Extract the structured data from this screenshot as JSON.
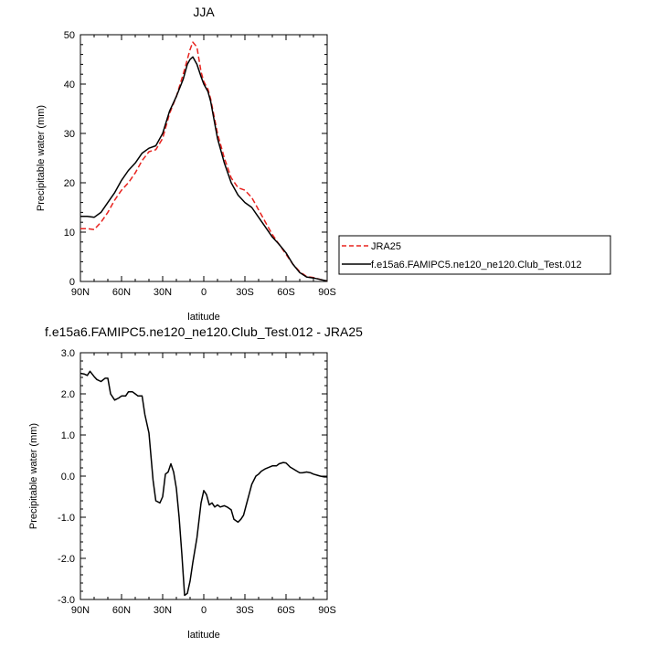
{
  "chart_data": [
    {
      "type": "line",
      "title": "JJA",
      "xlabel": "latitude",
      "ylabel": "Precipitable water (mm)",
      "xlim": [
        90,
        -90
      ],
      "ylim": [
        0,
        50
      ],
      "x_ticks": [
        90,
        60,
        30,
        0,
        -30,
        -60,
        -90
      ],
      "x_tick_labels": [
        "90N",
        "60N",
        "30N",
        "0",
        "30S",
        "60S",
        "90S"
      ],
      "y_ticks": [
        0,
        10,
        20,
        30,
        40,
        50
      ],
      "y_tick_labels": [
        "0",
        "10",
        "20",
        "30",
        "40",
        "50"
      ],
      "legend_position": "right",
      "series": [
        {
          "name": "JRA25",
          "color": "#e8231f",
          "dash": "dashed",
          "x": [
            90,
            85,
            80,
            75,
            70,
            65,
            60,
            55,
            50,
            45,
            40,
            35,
            30,
            25,
            20,
            15,
            12,
            10,
            8,
            5,
            2,
            0,
            -3,
            -5,
            -10,
            -15,
            -20,
            -25,
            -30,
            -35,
            -40,
            -45,
            -50,
            -55,
            -60,
            -65,
            -70,
            -75,
            -80,
            -85,
            -90
          ],
          "values": [
            10.7,
            10.7,
            10.5,
            12.0,
            14.0,
            16.5,
            18.5,
            20.0,
            22.0,
            24.5,
            26.3,
            26.7,
            29.0,
            34.0,
            37.5,
            42.0,
            45.0,
            47.0,
            48.5,
            47.5,
            42.5,
            40.5,
            39.0,
            37.0,
            30.0,
            25.0,
            21.0,
            19.0,
            18.5,
            17.0,
            14.5,
            12.0,
            9.5,
            7.5,
            5.5,
            3.5,
            2.0,
            1.0,
            0.8,
            0.4,
            0.1
          ]
        },
        {
          "name": "f.e15a6.FAMIPC5.ne120_ne120.Club_Test.012",
          "color": "#000000",
          "dash": "solid",
          "x": [
            90,
            85,
            80,
            75,
            70,
            65,
            60,
            55,
            50,
            45,
            40,
            35,
            30,
            25,
            20,
            15,
            12,
            10,
            8,
            5,
            2,
            0,
            -3,
            -5,
            -10,
            -15,
            -20,
            -25,
            -30,
            -35,
            -40,
            -45,
            -50,
            -55,
            -60,
            -65,
            -70,
            -75,
            -80,
            -85,
            -90
          ],
          "values": [
            13.2,
            13.2,
            13.0,
            14.0,
            16.0,
            18.0,
            20.5,
            22.5,
            24.0,
            26.0,
            27.0,
            27.5,
            30.0,
            34.5,
            37.5,
            41.0,
            44.0,
            45.0,
            45.5,
            44.0,
            41.5,
            40.0,
            38.5,
            36.5,
            29.0,
            24.0,
            20.0,
            17.5,
            16.0,
            15.0,
            13.0,
            11.0,
            9.0,
            7.5,
            5.8,
            3.5,
            1.8,
            0.9,
            0.7,
            0.4,
            0.1
          ]
        }
      ]
    },
    {
      "type": "line",
      "title": "f.e15a6.FAMIPC5.ne120_ne120.Club_Test.012 - JRA25",
      "xlabel": "latitude",
      "ylabel": "Precipitable water (mm)",
      "xlim": [
        90,
        -90
      ],
      "ylim": [
        -3.0,
        3.0
      ],
      "x_ticks": [
        90,
        60,
        30,
        0,
        -30,
        -60,
        -90
      ],
      "x_tick_labels": [
        "90N",
        "60N",
        "30N",
        "0",
        "30S",
        "60S",
        "90S"
      ],
      "y_ticks": [
        -3,
        -2,
        -1,
        0,
        1,
        2,
        3
      ],
      "y_tick_labels": [
        "-3.0",
        "-2.0",
        "-1.0",
        "0.0",
        "1.0",
        "2.0",
        "3.0"
      ],
      "series": [
        {
          "color": "#000000",
          "dash": "solid",
          "x": [
            90,
            87,
            85,
            83,
            80,
            78,
            75,
            72,
            70,
            68,
            65,
            62,
            60,
            57,
            55,
            52,
            50,
            48,
            45,
            43,
            40,
            37,
            35,
            32,
            30,
            28,
            26,
            24,
            22,
            20,
            18,
            16,
            14,
            12,
            10,
            8,
            5,
            2,
            0,
            -2,
            -4,
            -6,
            -8,
            -10,
            -12,
            -15,
            -17,
            -20,
            -22,
            -25,
            -27,
            -29,
            -31,
            -33,
            -35,
            -38,
            -40,
            -42,
            -45,
            -48,
            -50,
            -53,
            -55,
            -58,
            -60,
            -63,
            -65,
            -68,
            -70,
            -72,
            -75,
            -78,
            -80,
            -83,
            -85,
            -88,
            -90
          ],
          "values": [
            2.5,
            2.48,
            2.45,
            2.55,
            2.42,
            2.35,
            2.3,
            2.38,
            2.38,
            2.0,
            1.85,
            1.9,
            1.95,
            1.95,
            2.05,
            2.05,
            2.0,
            1.95,
            1.95,
            1.5,
            1.05,
            -0.1,
            -0.6,
            -0.65,
            -0.5,
            0.05,
            0.1,
            0.3,
            0.1,
            -0.3,
            -1.0,
            -1.9,
            -2.9,
            -2.85,
            -2.55,
            -2.1,
            -1.5,
            -0.65,
            -0.35,
            -0.45,
            -0.7,
            -0.65,
            -0.75,
            -0.7,
            -0.75,
            -0.72,
            -0.75,
            -0.82,
            -1.05,
            -1.12,
            -1.05,
            -0.95,
            -0.7,
            -0.45,
            -0.2,
            0.0,
            0.05,
            0.12,
            0.18,
            0.22,
            0.25,
            0.25,
            0.3,
            0.33,
            0.32,
            0.22,
            0.18,
            0.12,
            0.08,
            0.08,
            0.1,
            0.08,
            0.05,
            0.02,
            0.0,
            -0.02,
            -0.02
          ]
        }
      ]
    }
  ]
}
